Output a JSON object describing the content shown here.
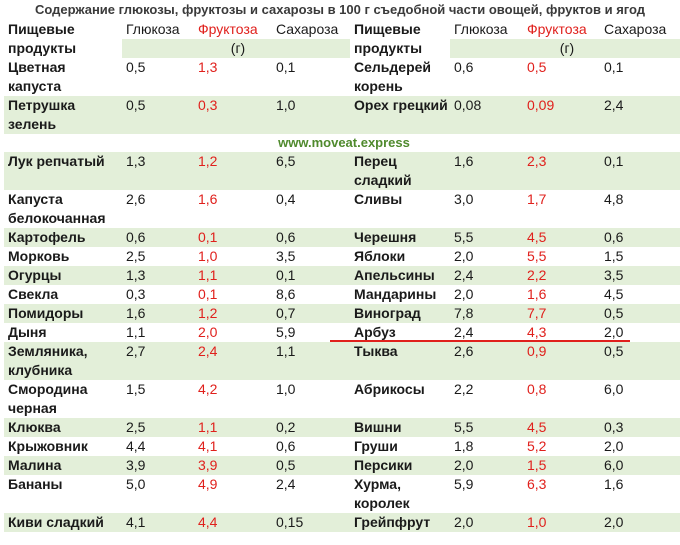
{
  "title": "Содержание глюкозы, фруктозы и сахарозы в 100 г съедобной части овощей, фруктов и ягод",
  "header": {
    "left": {
      "product": "Пищевые продукты",
      "glucose": "Глюкоза",
      "fructose": "Фруктоза",
      "sucrose": "Сахароза",
      "unit": "(г)"
    },
    "right": {
      "product": "Пищевые продукты",
      "glucose": "Глюкоза",
      "fructose": "Фруктоза",
      "sucrose": "Сахароза",
      "unit": "(г)"
    }
  },
  "rows_top": [
    {
      "left": {
        "name": "Цветная капуста",
        "glucose": "0,5",
        "fructose": "1,3",
        "sucrose": "0,1"
      },
      "right": {
        "name": "Сельдерей корень",
        "glucose": "0,6",
        "fructose": "0,5",
        "sucrose": "0,1"
      }
    },
    {
      "left": {
        "name": "Петрушка зелень",
        "glucose": "0,5",
        "fructose": "0,3",
        "sucrose": "1,0"
      },
      "right": {
        "name": "Орех грецкий",
        "glucose": "0,08",
        "fructose": "0,09",
        "sucrose": "2,4"
      }
    }
  ],
  "watermark": "www.moveat.express",
  "rows_bottom": [
    {
      "left": {
        "name": "Лук репчатый",
        "glucose": "1,3",
        "fructose": "1,2",
        "sucrose": "6,5"
      },
      "right": {
        "name": "Перец сладкий",
        "glucose": "1,6",
        "fructose": "2,3",
        "sucrose": "0,1"
      }
    },
    {
      "left": {
        "name": "Капуста белокочанная",
        "glucose": "2,6",
        "fructose": "1,6",
        "sucrose": "0,4"
      },
      "right": {
        "name": "Сливы",
        "glucose": "3,0",
        "fructose": "1,7",
        "sucrose": "4,8"
      }
    },
    {
      "left": {
        "name": "Картофель",
        "glucose": "0,6",
        "fructose": "0,1",
        "sucrose": "0,6"
      },
      "right": {
        "name": "Черешня",
        "glucose": "5,5",
        "fructose": "4,5",
        "sucrose": "0,6"
      }
    },
    {
      "left": {
        "name": "Морковь",
        "glucose": "2,5",
        "fructose": "1,0",
        "sucrose": "3,5"
      },
      "right": {
        "name": "Яблоки",
        "glucose": "2,0",
        "fructose": "5,5",
        "sucrose": "1,5"
      }
    },
    {
      "left": {
        "name": "Огурцы",
        "glucose": "1,3",
        "fructose": "1,1",
        "sucrose": "0,1"
      },
      "right": {
        "name": "Апельсины",
        "glucose": "2,4",
        "fructose": "2,2",
        "sucrose": "3,5"
      }
    },
    {
      "left": {
        "name": "Свекла",
        "glucose": "0,3",
        "fructose": "0,1",
        "sucrose": "8,6"
      },
      "right": {
        "name": "Мандарины",
        "glucose": "2,0",
        "fructose": "1,6",
        "sucrose": "4,5"
      }
    },
    {
      "left": {
        "name": "Помидоры",
        "glucose": "1,6",
        "fructose": "1,2",
        "sucrose": "0,7"
      },
      "right": {
        "name": "Виноград",
        "glucose": "7,8",
        "fructose": "7,7",
        "sucrose": "0,5"
      }
    },
    {
      "left": {
        "name": "Дыня",
        "glucose": "1,1",
        "fructose": "2,0",
        "sucrose": "5,9"
      },
      "right": {
        "name": "Арбуз",
        "glucose": "2,4",
        "fructose": "4,3",
        "sucrose": "2,0"
      }
    },
    {
      "left": {
        "name": "Земляника, клубника",
        "glucose": "2,7",
        "fructose": "2,4",
        "sucrose": "1,1"
      },
      "right": {
        "name": "Тыква",
        "glucose": "2,6",
        "fructose": "0,9",
        "sucrose": "0,5"
      }
    },
    {
      "left": {
        "name": "Смородина черная",
        "glucose": "1,5",
        "fructose": "4,2",
        "sucrose": "1,0"
      },
      "right": {
        "name": "Абрикосы",
        "glucose": "2,2",
        "fructose": "0,8",
        "sucrose": "6,0"
      }
    },
    {
      "left": {
        "name": "Клюква",
        "glucose": "2,5",
        "fructose": "1,1",
        "sucrose": "0,2"
      },
      "right": {
        "name": "Вишни",
        "glucose": "5,5",
        "fructose": "4,5",
        "sucrose": "0,3"
      }
    },
    {
      "left": {
        "name": "Крыжовник",
        "glucose": "4,4",
        "fructose": "4,1",
        "sucrose": "0,6"
      },
      "right": {
        "name": "Груши",
        "glucose": "1,8",
        "fructose": "5,2",
        "sucrose": "2,0"
      }
    },
    {
      "left": {
        "name": "Малина",
        "glucose": "3,9",
        "fructose": "3,9",
        "sucrose": "0,5"
      },
      "right": {
        "name": "Персики",
        "glucose": "2,0",
        "fructose": "1,5",
        "sucrose": "6,0"
      }
    },
    {
      "left": {
        "name": "Бананы",
        "glucose": "5,0",
        "fructose": "4,9",
        "sucrose": "2,4"
      },
      "right": {
        "name": "Хурма, королек",
        "glucose": "5,9",
        "fructose": "6,3",
        "sucrose": "1,6"
      }
    },
    {
      "left": {
        "name": "Киви сладкий",
        "glucose": "4,1",
        "fructose": "4,4",
        "sucrose": "0,15"
      },
      "right": {
        "name": "Грейпфрут",
        "glucose": "2,0",
        "fructose": "1,0",
        "sucrose": "2,0"
      }
    }
  ]
}
